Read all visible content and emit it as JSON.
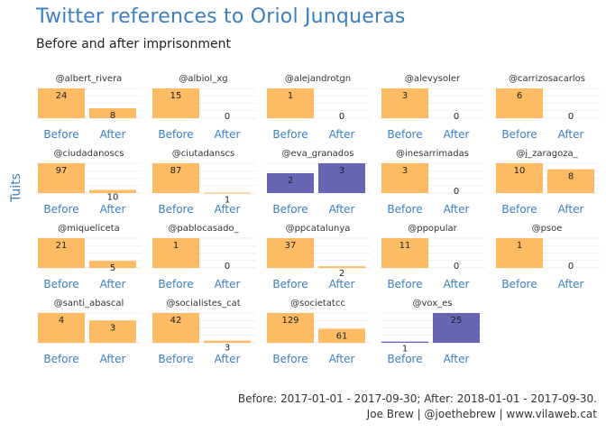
{
  "title": "Twitter references to Oriol Junqueras",
  "subtitle": "Before and after imprisonment",
  "caption": {
    "line1": "Before: 2017-01-01 - 2017-09-30; After: 2018-01-01 - 2017-09-30.",
    "line2": "Joe Brew | @joethebrew | www.vilaweb.cat"
  },
  "colors": {
    "before": "#fdb049",
    "after_default": "#fdb049",
    "highlight": "#5b58ae",
    "panel_strip": "#ffffff",
    "grid": "#e6e6e6",
    "tick_label": "#3a7fc1",
    "title": "#3a7fc1"
  },
  "chart_data": {
    "type": "bar",
    "title": "Twitter references to Oriol Junqueras",
    "subtitle": "Before and after imprisonment",
    "ylabel": "Tuits",
    "xlabel": "",
    "categories": [
      "Before",
      "After"
    ],
    "facet_scales": "free_y",
    "grid": true,
    "legend": "none",
    "highlighted_panels": [
      "@eva_granados",
      "@vox_es"
    ],
    "panels": [
      {
        "name": "@albert_rivera",
        "values": [
          24,
          8
        ]
      },
      {
        "name": "@albiol_xg",
        "values": [
          15,
          0
        ]
      },
      {
        "name": "@alejandrotgn",
        "values": [
          1,
          0
        ]
      },
      {
        "name": "@alevysoler",
        "values": [
          3,
          0
        ]
      },
      {
        "name": "@carrizosacarlos",
        "values": [
          6,
          0
        ]
      },
      {
        "name": "@ciudadanoscs",
        "values": [
          97,
          10
        ]
      },
      {
        "name": "@ciutadanscs",
        "values": [
          87,
          1
        ]
      },
      {
        "name": "@eva_granados",
        "values": [
          2,
          3
        ]
      },
      {
        "name": "@inesarrimadas",
        "values": [
          3,
          0
        ]
      },
      {
        "name": "@j_zaragoza_",
        "values": [
          10,
          8
        ]
      },
      {
        "name": "@miqueliceta",
        "values": [
          21,
          5
        ]
      },
      {
        "name": "@pablocasado_",
        "values": [
          1,
          0
        ]
      },
      {
        "name": "@ppcatalunya",
        "values": [
          37,
          2
        ]
      },
      {
        "name": "@ppopular",
        "values": [
          11,
          0
        ]
      },
      {
        "name": "@psoe",
        "values": [
          1,
          0
        ]
      },
      {
        "name": "@santi_abascal",
        "values": [
          4,
          3
        ]
      },
      {
        "name": "@socialistes_cat",
        "values": [
          42,
          3
        ]
      },
      {
        "name": "@societatcc",
        "values": [
          129,
          61
        ]
      },
      {
        "name": "@vox_es",
        "values": [
          1,
          25
        ]
      }
    ]
  }
}
